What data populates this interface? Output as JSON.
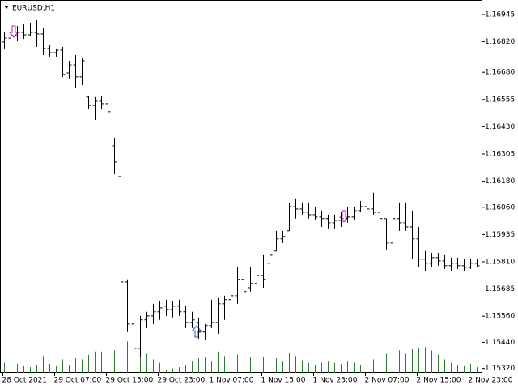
{
  "chart_data": {
    "type": "ohlc",
    "title": "EURUSD,H1",
    "categories": [
      "28 Oct 2021",
      null,
      null,
      null,
      null,
      null,
      null,
      null,
      "29 Oct 07:00",
      null,
      null,
      null,
      null,
      null,
      null,
      null,
      "29 Oct 15:00",
      null,
      null,
      null,
      null,
      null,
      null,
      null,
      "29 Oct 23:00",
      null,
      null,
      null,
      null,
      null,
      null,
      null,
      "1 Nov 07:00",
      null,
      null,
      null,
      null,
      null,
      null,
      null,
      "1 Nov 15:00",
      null,
      null,
      null,
      null,
      null,
      null,
      null,
      "1 Nov 23:00",
      null,
      null,
      null,
      null,
      null,
      null,
      null,
      "2 Nov 07:00",
      null,
      null,
      null,
      null,
      null,
      null,
      null,
      "2 Nov 15:00",
      null,
      null,
      null,
      null,
      null,
      null,
      null,
      "2 Nov 23:00",
      null
    ],
    "open": [
      1.16819,
      1.16837,
      1.16848,
      1.16863,
      1.16852,
      1.16863,
      1.16856,
      1.16789,
      1.1677,
      1.16781,
      1.16677,
      1.16714,
      1.16659,
      1.16566,
      1.16528,
      1.16547,
      1.16536,
      1.16342,
      1.16201,
      1.15717,
      1.15524,
      1.15412,
      1.15543,
      1.15561,
      1.1558,
      1.15606,
      1.15591,
      1.15606,
      1.1558,
      1.15531,
      1.15531,
      1.15487,
      1.15517,
      1.15531,
      1.15617,
      1.15636,
      1.15654,
      1.15729,
      1.15691,
      1.1571,
      1.15747,
      1.15803,
      1.15859,
      1.15915,
      1.15952,
      1.16063,
      1.16052,
      1.16037,
      1.16026,
      1.16015,
      1.16008,
      1.15989,
      1.16,
      1.16008,
      1.16015,
      1.16045,
      1.16063,
      1.16052,
      1.16037,
      1.16008,
      1.15896,
      1.16008,
      1.15989,
      1.1597,
      1.15915,
      1.15822,
      1.15803,
      1.15829,
      1.15814,
      1.15792,
      1.15803,
      1.15792,
      1.15784,
      1.15803
    ],
    "high": [
      1.16863,
      1.16871,
      1.16893,
      1.169,
      1.16908,
      1.16919,
      1.16882,
      1.16807,
      1.16789,
      1.16796,
      1.16733,
      1.16759,
      1.16744,
      1.16573,
      1.16566,
      1.16573,
      1.16566,
      1.1638,
      1.16268,
      1.15729,
      1.15531,
      1.15561,
      1.1558,
      1.15617,
      1.15628,
      1.15636,
      1.15628,
      1.15636,
      1.15606,
      1.1558,
      1.15554,
      1.15524,
      1.15636,
      1.15643,
      1.15654,
      1.15747,
      1.15784,
      1.15747,
      1.15784,
      1.15822,
      1.1584,
      1.15933,
      1.15952,
      1.15952,
      1.16082,
      1.16101,
      1.16082,
      1.16082,
      1.16063,
      1.16045,
      1.16026,
      1.16026,
      1.16037,
      1.16063,
      1.16063,
      1.16089,
      1.16119,
      1.16127,
      1.16138,
      1.16008,
      1.16082,
      1.16082,
      1.16082,
      1.16045,
      1.1597,
      1.15859,
      1.15851,
      1.15851,
      1.1584,
      1.15829,
      1.15829,
      1.15822,
      1.15822,
      1.15822
    ],
    "low": [
      1.16789,
      1.16796,
      1.16826,
      1.16833,
      1.16845,
      1.16796,
      1.16759,
      1.16752,
      1.16752,
      1.16659,
      1.16651,
      1.1661,
      1.16621,
      1.1651,
      1.16461,
      1.1651,
      1.16484,
      1.16212,
      1.1571,
      1.15487,
      1.15383,
      1.15375,
      1.15505,
      1.15524,
      1.15543,
      1.15561,
      1.15554,
      1.15561,
      1.15505,
      1.15505,
      1.15457,
      1.1545,
      1.15505,
      1.15479,
      1.15543,
      1.15598,
      1.15617,
      1.15654,
      1.15673,
      1.15691,
      1.15691,
      1.15803,
      1.15859,
      1.15896,
      1.15952,
      1.16008,
      1.16026,
      1.16008,
      1.16,
      1.1597,
      1.15963,
      1.15963,
      1.1597,
      1.15989,
      1.16,
      1.16037,
      1.16008,
      1.16026,
      1.15896,
      1.15866,
      1.15896,
      1.15952,
      1.15952,
      1.15822,
      1.15784,
      1.15766,
      1.15784,
      1.15792,
      1.15777,
      1.15766,
      1.15777,
      1.15766,
      1.15777,
      1.15784
    ],
    "close": [
      1.16837,
      1.16848,
      1.16863,
      1.16852,
      1.16863,
      1.16856,
      1.16789,
      1.1677,
      1.16781,
      1.1667,
      1.16714,
      1.16659,
      1.16733,
      1.16528,
      1.16547,
      1.16536,
      1.16499,
      1.16268,
      1.15717,
      1.15524,
      1.15412,
      1.15543,
      1.15561,
      1.1558,
      1.15598,
      1.15591,
      1.15606,
      1.1558,
      1.15531,
      1.15543,
      1.15487,
      1.15517,
      1.15531,
      1.15617,
      1.15636,
      1.15654,
      1.15729,
      1.15673,
      1.1571,
      1.15747,
      1.15729,
      1.1584,
      1.15915,
      1.15926,
      1.16063,
      1.16052,
      1.16037,
      1.16026,
      1.16015,
      1.16008,
      1.15989,
      1.16,
      1.16008,
      1.16015,
      1.16045,
      1.16063,
      1.16052,
      1.16037,
      1.16008,
      1.15896,
      1.16008,
      1.15989,
      1.1597,
      1.15915,
      1.15822,
      1.15803,
      1.15829,
      1.15814,
      1.15792,
      1.15803,
      1.15792,
      1.15784,
      1.15803,
      1.15792
    ],
    "volume": [
      900,
      700,
      800,
      600,
      500,
      700,
      1500,
      800,
      600,
      1200,
      700,
      1300,
      1200,
      1600,
      1900,
      1900,
      1800,
      2000,
      2600,
      2800,
      3600,
      4200,
      1700,
      1200,
      900,
      300,
      400,
      500,
      700,
      1000,
      1300,
      1400,
      1000,
      1900,
      1500,
      1300,
      1600,
      1300,
      1400,
      1900,
      1400,
      1500,
      1300,
      1000,
      1800,
      1500,
      1100,
      900,
      700,
      900,
      1000,
      900,
      800,
      1000,
      900,
      700,
      800,
      1200,
      1600,
      1700,
      1400,
      2000,
      1700,
      2100,
      2200,
      2300,
      2000,
      1600,
      1200,
      900,
      700,
      600,
      800,
      500
    ],
    "color": "#000000",
    "volume_color": "#2e7d32",
    "ylim": [
      1.153,
      1.17012
    ],
    "yticks": [
      1.16945,
      {
        "value": 1.1682,
        "label": "1.16820"
      },
      {
        "value": 1.1668,
        "label": "1.16680"
      },
      1.16555,
      {
        "value": 1.1643,
        "label": "1.16430"
      },
      1.16305,
      {
        "value": 1.1618,
        "label": "1.16180"
      },
      {
        "value": 1.1606,
        "label": "1.16060"
      },
      1.15935,
      {
        "value": 1.1581,
        "label": "1.15810"
      },
      1.15685,
      {
        "value": 1.1556,
        "label": "1.15560"
      },
      {
        "value": 1.1544,
        "label": "1.15440"
      },
      {
        "value": 1.1532,
        "label": "1.15320"
      }
    ]
  }
}
